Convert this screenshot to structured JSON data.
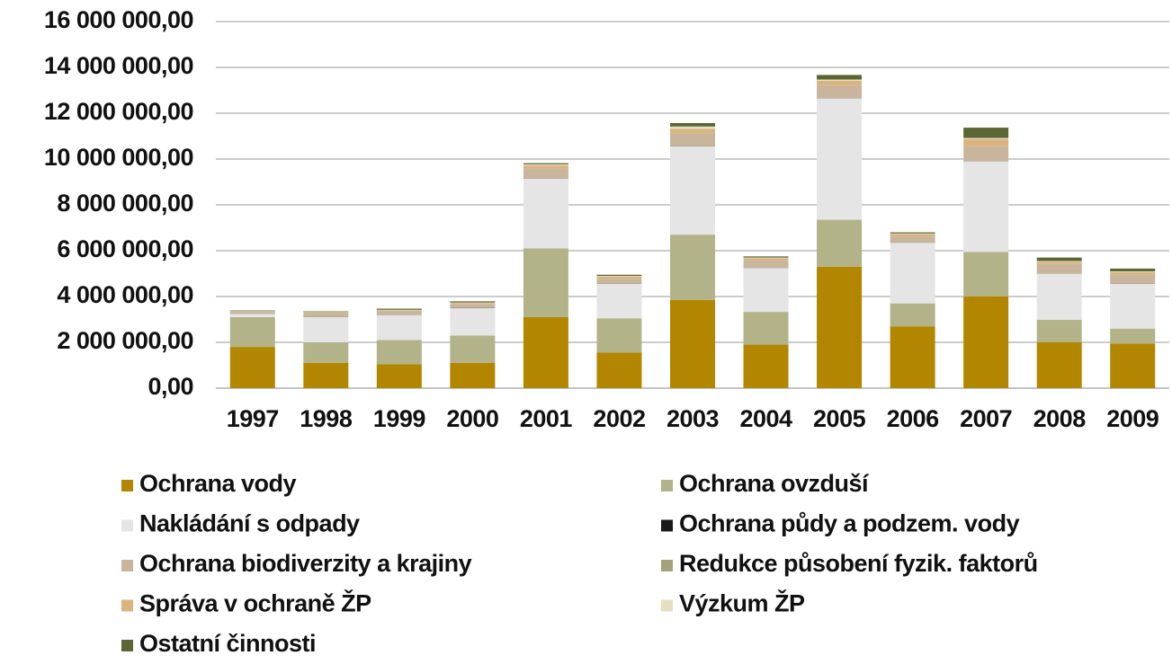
{
  "chart_data": {
    "type": "stacked_bar",
    "categories": [
      "1997",
      "1998",
      "1999",
      "2000",
      "2001",
      "2002",
      "2003",
      "2004",
      "2005",
      "2006",
      "2007",
      "2008",
      "2009"
    ],
    "series": [
      {
        "name": "Ochrana vody",
        "color": "#b38600",
        "values": [
          1800000,
          1100000,
          1050000,
          1100000,
          3100000,
          1550000,
          3850000,
          1900000,
          5300000,
          2700000,
          4000000,
          2000000,
          1950000
        ]
      },
      {
        "name": "Ochrana ovzduší",
        "color": "#b3b38a",
        "values": [
          1300000,
          900000,
          1050000,
          1200000,
          3000000,
          1500000,
          2850000,
          1430000,
          2050000,
          1000000,
          1950000,
          980000,
          650000
        ]
      },
      {
        "name": "Nakládání s odpady",
        "color": "#e5e5e5",
        "values": [
          150000,
          1100000,
          1100000,
          1200000,
          3050000,
          1500000,
          3850000,
          1920000,
          5300000,
          2650000,
          3950000,
          2020000,
          1950000
        ]
      },
      {
        "name": "Ochrana půdy a podzem. vody",
        "color": "#1a1a1a",
        "values": [
          10000,
          10000,
          10000,
          10000,
          10000,
          10000,
          10000,
          10000,
          10000,
          10000,
          10000,
          10000,
          10000
        ]
      },
      {
        "name": "Ochrana biodiverzity a krajiny",
        "color": "#c9b59c",
        "values": [
          50000,
          150000,
          150000,
          150000,
          400000,
          200000,
          550000,
          300000,
          550000,
          250000,
          650000,
          400000,
          400000
        ]
      },
      {
        "name": "Redukce působení fyzik. faktorů",
        "color": "#a3a37a",
        "values": [
          10000,
          10000,
          10000,
          10000,
          10000,
          10000,
          10000,
          10000,
          10000,
          10000,
          10000,
          10000,
          10000
        ]
      },
      {
        "name": "Správa v ochraně ŽP",
        "color": "#dbb37f",
        "values": [
          20000,
          30000,
          30000,
          50000,
          150000,
          100000,
          200000,
          100000,
          200000,
          100000,
          300000,
          100000,
          100000
        ]
      },
      {
        "name": "Výzkum ŽP",
        "color": "#e3e0c2",
        "values": [
          20000,
          20000,
          20000,
          20000,
          50000,
          30000,
          100000,
          30000,
          50000,
          30000,
          50000,
          30000,
          30000
        ]
      },
      {
        "name": "Ostatní činnosti",
        "color": "#5c6634",
        "values": [
          30000,
          30000,
          50000,
          50000,
          50000,
          50000,
          150000,
          50000,
          200000,
          50000,
          450000,
          150000,
          120000
        ]
      }
    ],
    "ylim": [
      0,
      16000000
    ],
    "yticks": [
      {
        "value": 0,
        "label": "0,00"
      },
      {
        "value": 2000000,
        "label": "2 000 000,00"
      },
      {
        "value": 4000000,
        "label": "4 000 000,00"
      },
      {
        "value": 6000000,
        "label": "6 000 000,00"
      },
      {
        "value": 8000000,
        "label": "8 000 000,00"
      },
      {
        "value": 10000000,
        "label": "10 000 000,00"
      },
      {
        "value": 12000000,
        "label": "12 000 000,00"
      },
      {
        "value": 14000000,
        "label": "14 000 000,00"
      },
      {
        "value": 16000000,
        "label": "16 000 000,00"
      }
    ],
    "grid": true
  }
}
